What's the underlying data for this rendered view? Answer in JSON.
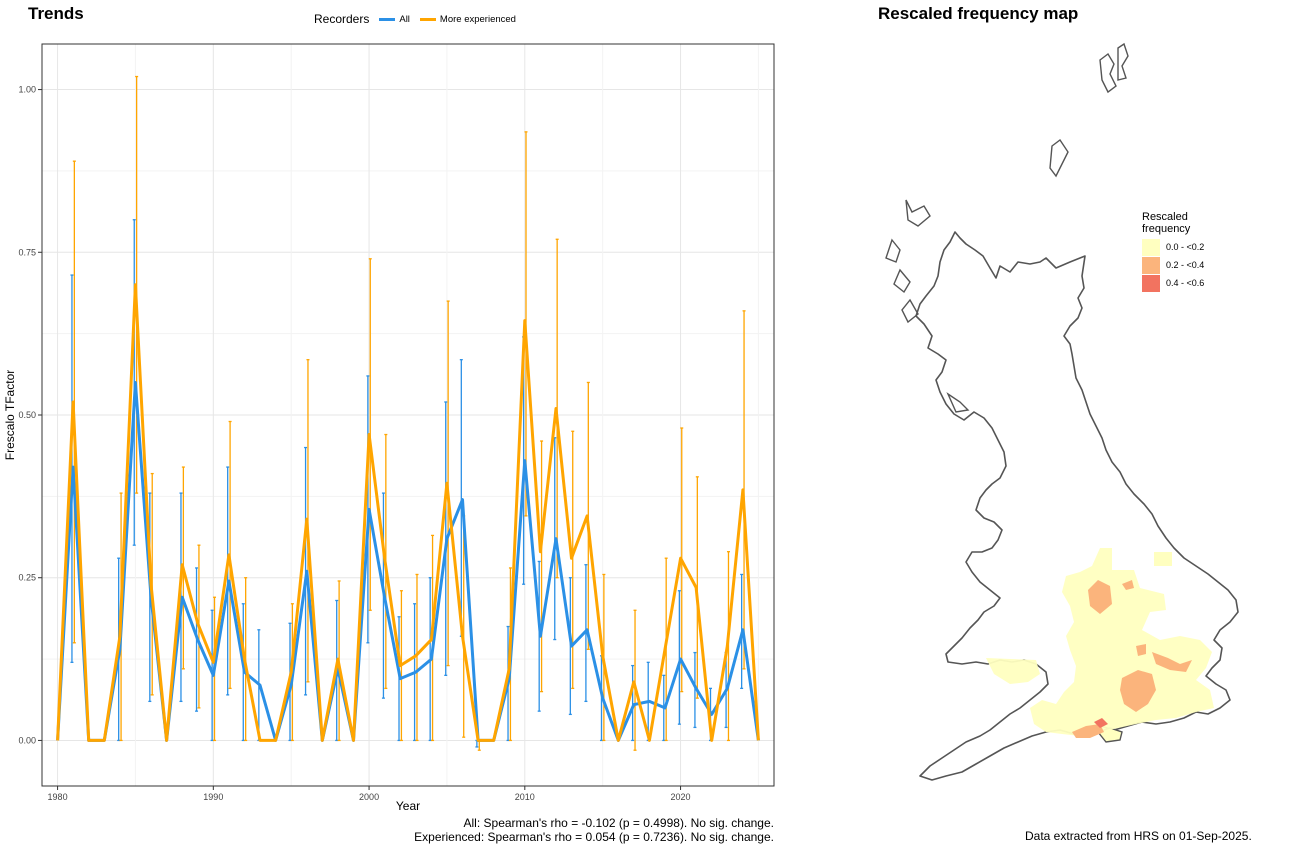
{
  "trends_title": "Trends",
  "map_title": "Rescaled frequency map",
  "legend": {
    "title": "Recorders",
    "items": [
      {
        "label": "All",
        "color": "#2b90e6"
      },
      {
        "label": "More experienced",
        "color": "#ffa500"
      }
    ]
  },
  "stats": {
    "all": "All: Spearman's rho = -0.102 (p = 0.4998). No sig. change.",
    "experienced": "Experienced: Spearman's rho = 0.054 (p = 0.7236). No sig. change."
  },
  "extract_note": "Data extracted from HRS on 01-Sep-2025.",
  "map_legend": {
    "title_line1": "Rescaled",
    "title_line2": "frequency",
    "items": [
      {
        "label": "0.0 - <0.2",
        "color": "#ffffc0"
      },
      {
        "label": "0.2 - <0.4",
        "color": "#fbb47c"
      },
      {
        "label": "0.4 - <0.6",
        "color": "#f27360"
      }
    ]
  },
  "chart_data": {
    "type": "line",
    "title": "Trends",
    "xlabel": "Year",
    "ylabel": "Frescalo TFactor",
    "xlim": [
      1979,
      2026
    ],
    "ylim": [
      -0.07,
      1.07
    ],
    "x_ticks": [
      1980,
      1990,
      2000,
      2010,
      2020
    ],
    "y_ticks": [
      0.0,
      0.25,
      0.5,
      0.75,
      1.0
    ],
    "y_tick_labels": [
      "0.00",
      "0.25",
      "0.50",
      "0.75",
      "1.00"
    ],
    "grid": true,
    "legend_position": "top",
    "series": [
      {
        "name": "All",
        "color": "#2b90e6",
        "x": [
          1980,
          1981,
          1982,
          1983,
          1984,
          1985,
          1986,
          1987,
          1988,
          1989,
          1990,
          1991,
          1992,
          1993,
          1994,
          1995,
          1996,
          1997,
          1998,
          1999,
          2000,
          2001,
          2002,
          2003,
          2004,
          2005,
          2006,
          2007,
          2008,
          2009,
          2010,
          2011,
          2012,
          2013,
          2014,
          2015,
          2016,
          2017,
          2018,
          2019,
          2020,
          2021,
          2022,
          2023,
          2024,
          2025
        ],
        "y": [
          0,
          0.42,
          0,
          0,
          0.14,
          0.55,
          0.22,
          0,
          0.22,
          0.155,
          0.1,
          0.245,
          0.105,
          0.085,
          0,
          0.085,
          0.26,
          0,
          0.11,
          0,
          0.355,
          0.22,
          0.095,
          0.105,
          0.125,
          0.31,
          0.37,
          0,
          0,
          0.095,
          0.43,
          0.16,
          0.31,
          0.145,
          0.17,
          0.065,
          0,
          0.055,
          0.06,
          0.05,
          0.125,
          0.08,
          0.04,
          0.08,
          0.17,
          0
        ],
        "lower": [
          0,
          0.12,
          0,
          0,
          0,
          0.3,
          0.06,
          0,
          0.06,
          0.045,
          0,
          0.07,
          0,
          0,
          0,
          0,
          0.07,
          0,
          0,
          0,
          0.15,
          0.065,
          0,
          0,
          0,
          0.1,
          0.16,
          -0.01,
          0,
          0,
          0.24,
          0.045,
          0.155,
          0.04,
          0.06,
          0,
          0,
          0,
          0,
          0,
          0.025,
          0.02,
          0,
          0.02,
          0.08,
          0
        ],
        "upper": [
          0,
          0.715,
          0,
          0,
          0.28,
          0.8,
          0.38,
          0,
          0.38,
          0.265,
          0.2,
          0.42,
          0.21,
          0.17,
          0,
          0.18,
          0.45,
          0,
          0.215,
          0,
          0.56,
          0.38,
          0.19,
          0.21,
          0.25,
          0.52,
          0.585,
          0,
          0,
          0.175,
          0.62,
          0.275,
          0.465,
          0.25,
          0.27,
          0.13,
          0,
          0.115,
          0.12,
          0.1,
          0.23,
          0.135,
          0.08,
          0.135,
          0.255,
          0
        ]
      },
      {
        "name": "More experienced",
        "color": "#ffa500",
        "x": [
          1980,
          1981,
          1982,
          1983,
          1984,
          1985,
          1986,
          1987,
          1988,
          1989,
          1990,
          1991,
          1992,
          1993,
          1994,
          1995,
          1996,
          1997,
          1998,
          1999,
          2000,
          2001,
          2002,
          2003,
          2004,
          2005,
          2006,
          2007,
          2008,
          2009,
          2010,
          2011,
          2012,
          2013,
          2014,
          2015,
          2016,
          2017,
          2018,
          2019,
          2020,
          2021,
          2022,
          2023,
          2024,
          2025
        ],
        "y": [
          0,
          0.52,
          0,
          0,
          0.16,
          0.7,
          0.24,
          0,
          0.27,
          0.18,
          0.12,
          0.285,
          0.125,
          0,
          0,
          0.105,
          0.34,
          0,
          0.125,
          0,
          0.47,
          0.28,
          0.115,
          0.13,
          0.155,
          0.395,
          0.16,
          0,
          0,
          0.11,
          0.645,
          0.29,
          0.51,
          0.28,
          0.345,
          0.13,
          0,
          0.09,
          0,
          0.14,
          0.28,
          0.235,
          0,
          0.145,
          0.385,
          0
        ],
        "lower": [
          0,
          0.15,
          0,
          0,
          0,
          0.38,
          0.07,
          0,
          0.11,
          0.05,
          0,
          0.08,
          0,
          0,
          0,
          0,
          0.09,
          0,
          0,
          0,
          0.2,
          0.08,
          0,
          0,
          0,
          0.115,
          0.005,
          -0.015,
          0,
          0,
          0.345,
          0.075,
          0.25,
          0.08,
          0.14,
          0,
          0,
          -0.015,
          0,
          0,
          0.075,
          0.065,
          0,
          0,
          0.11,
          0
        ],
        "upper": [
          0,
          0.89,
          0,
          0,
          0.38,
          1.02,
          0.41,
          0,
          0.42,
          0.3,
          0.22,
          0.49,
          0.25,
          0,
          0,
          0.21,
          0.585,
          0,
          0.245,
          0,
          0.74,
          0.47,
          0.23,
          0.255,
          0.315,
          0.675,
          0.345,
          0,
          0,
          0.265,
          0.935,
          0.46,
          0.77,
          0.475,
          0.55,
          0.255,
          0,
          0.2,
          0,
          0.28,
          0.48,
          0.405,
          0,
          0.29,
          0.66,
          0
        ]
      }
    ]
  }
}
